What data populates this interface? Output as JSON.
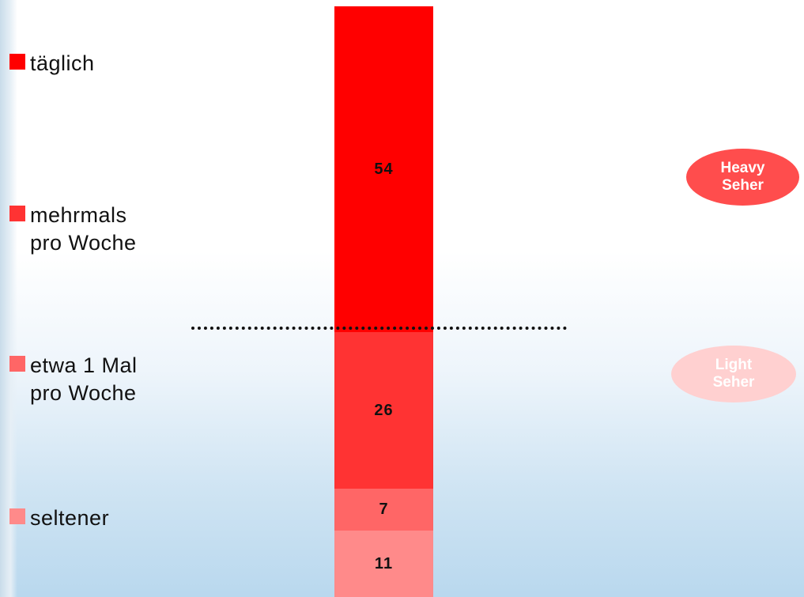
{
  "chart_data": {
    "type": "bar",
    "stacked": true,
    "series": [
      {
        "name": "täglich\nmehrmals pro Woche",
        "value": 54,
        "color": "#ff0000"
      },
      {
        "name": "etwa 1 Mal\npro Woche",
        "value": 26,
        "color": "#ff3333"
      },
      {
        "name": "seltener",
        "value": 7,
        "color": "#ff6666"
      },
      {
        "name": "",
        "value": 11,
        "color": "#ff8a8a"
      }
    ],
    "legend": [
      {
        "label": "täglich",
        "color": "#ff0000"
      },
      {
        "label": "mehrmals\npro Woche",
        "color": "#ff3333"
      },
      {
        "label": "etwa 1 Mal\npro Woche",
        "color": "#ff6666"
      },
      {
        "label": "seltener",
        "color": "#ff8a8a"
      }
    ],
    "segments": [
      {
        "value": 54,
        "label": "54",
        "color": "#ff0000"
      },
      {
        "value": 26,
        "label": "26",
        "color": "#ff3333"
      },
      {
        "value": 7,
        "label": "7",
        "color": "#ff6666"
      },
      {
        "value": 11,
        "label": "11",
        "color": "#ff8a8a"
      }
    ],
    "groups": [
      {
        "label": "Heavy\nSeher",
        "color": "#ff4d4d"
      },
      {
        "label": "Light\nSeher",
        "color": "#ffd0d0"
      }
    ]
  }
}
